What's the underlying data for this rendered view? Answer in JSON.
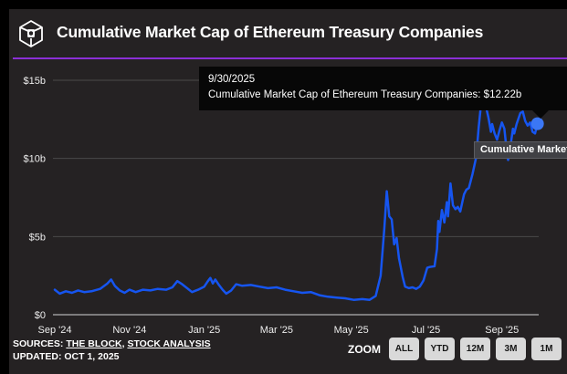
{
  "colors": {
    "page_bg": "#000000",
    "card_bg": "#252223",
    "accent_rule": "#8b2fd6",
    "line": "#1655f0",
    "end_dot": "#3b77f5",
    "gridline": "#4a4a4a",
    "zero_line": "#d4d4d4"
  },
  "header": {
    "title": "Cumulative Market Cap of Ethereum Treasury Companies",
    "logo": "the-block-logo"
  },
  "tooltip": {
    "date": "9/30/2025",
    "text": "Cumulative Market Cap of Ethereum Treasury Companies: $12.22b"
  },
  "series_label": "Cumulative Market",
  "footer": {
    "sources_label": "SOURCES:",
    "source1": "THE BLOCK",
    "separator": ", ",
    "source2": "STOCK ANALYSIS",
    "updated": "UPDATED: OCT 1, 2025",
    "zoom_label": "ZOOM",
    "zoom_buttons": [
      "ALL",
      "YTD",
      "12M",
      "3M",
      "1M"
    ]
  },
  "chart_data": {
    "type": "line",
    "title": "Cumulative Market Cap of Ethereum Treasury Companies",
    "unit": "USD billions",
    "grid": true,
    "legend_position": "end-of-line",
    "x_range": [
      "2024-09-01",
      "2025-10-01"
    ],
    "ylim": [
      0,
      15
    ],
    "y_ticks": [
      {
        "v": 0,
        "label": "$0"
      },
      {
        "v": 5,
        "label": "$5b"
      },
      {
        "v": 10,
        "label": "$10b"
      },
      {
        "v": 15,
        "label": "$15b"
      }
    ],
    "x_ticks": [
      {
        "date": "2024-09-01",
        "label": "Sep '24"
      },
      {
        "date": "2024-11-01",
        "label": "Nov '24"
      },
      {
        "date": "2025-01-01",
        "label": "Jan '25"
      },
      {
        "date": "2025-03-01",
        "label": "Mar '25"
      },
      {
        "date": "2025-05-01",
        "label": "May '25"
      },
      {
        "date": "2025-07-01",
        "label": "Jul '25"
      },
      {
        "date": "2025-09-01",
        "label": "Sep '25"
      }
    ],
    "end_marker": {
      "date": "2025-09-30",
      "value": 12.22
    },
    "series": [
      {
        "name": "Cumulative Market Cap of Ethereum Treasury Companies",
        "points": [
          [
            "2024-09-01",
            1.6
          ],
          [
            "2024-09-05",
            1.35
          ],
          [
            "2024-09-10",
            1.5
          ],
          [
            "2024-09-15",
            1.4
          ],
          [
            "2024-09-20",
            1.55
          ],
          [
            "2024-09-25",
            1.45
          ],
          [
            "2024-10-01",
            1.5
          ],
          [
            "2024-10-08",
            1.65
          ],
          [
            "2024-10-14",
            2.0
          ],
          [
            "2024-10-17",
            2.25
          ],
          [
            "2024-10-20",
            1.85
          ],
          [
            "2024-10-24",
            1.55
          ],
          [
            "2024-10-28",
            1.4
          ],
          [
            "2024-11-01",
            1.6
          ],
          [
            "2024-11-06",
            1.45
          ],
          [
            "2024-11-12",
            1.6
          ],
          [
            "2024-11-18",
            1.55
          ],
          [
            "2024-11-24",
            1.65
          ],
          [
            "2024-12-01",
            1.6
          ],
          [
            "2024-12-06",
            1.75
          ],
          [
            "2024-12-10",
            2.15
          ],
          [
            "2024-12-14",
            1.95
          ],
          [
            "2024-12-18",
            1.7
          ],
          [
            "2024-12-22",
            1.45
          ],
          [
            "2024-12-27",
            1.6
          ],
          [
            "2025-01-01",
            1.8
          ],
          [
            "2025-01-04",
            2.15
          ],
          [
            "2025-01-06",
            2.35
          ],
          [
            "2025-01-08",
            2.0
          ],
          [
            "2025-01-10",
            2.25
          ],
          [
            "2025-01-13",
            1.9
          ],
          [
            "2025-01-16",
            1.6
          ],
          [
            "2025-01-19",
            1.35
          ],
          [
            "2025-01-23",
            1.55
          ],
          [
            "2025-01-27",
            1.95
          ],
          [
            "2025-02-01",
            1.85
          ],
          [
            "2025-02-08",
            1.9
          ],
          [
            "2025-02-15",
            1.8
          ],
          [
            "2025-02-22",
            1.7
          ],
          [
            "2025-03-01",
            1.75
          ],
          [
            "2025-03-08",
            1.6
          ],
          [
            "2025-03-15",
            1.5
          ],
          [
            "2025-03-22",
            1.4
          ],
          [
            "2025-03-29",
            1.45
          ],
          [
            "2025-04-05",
            1.25
          ],
          [
            "2025-04-12",
            1.15
          ],
          [
            "2025-04-19",
            1.1
          ],
          [
            "2025-04-26",
            1.05
          ],
          [
            "2025-05-03",
            0.95
          ],
          [
            "2025-05-10",
            1.0
          ],
          [
            "2025-05-16",
            0.95
          ],
          [
            "2025-05-21",
            1.2
          ],
          [
            "2025-05-25",
            2.5
          ],
          [
            "2025-05-28",
            5.5
          ],
          [
            "2025-05-30",
            7.9
          ],
          [
            "2025-06-01",
            6.3
          ],
          [
            "2025-06-03",
            6.1
          ],
          [
            "2025-06-05",
            4.5
          ],
          [
            "2025-06-07",
            4.9
          ],
          [
            "2025-06-09",
            3.6
          ],
          [
            "2025-06-12",
            2.4
          ],
          [
            "2025-06-14",
            1.8
          ],
          [
            "2025-06-17",
            1.7
          ],
          [
            "2025-06-20",
            1.75
          ],
          [
            "2025-06-23",
            1.65
          ],
          [
            "2025-06-26",
            1.8
          ],
          [
            "2025-06-29",
            2.2
          ],
          [
            "2025-07-02",
            3.0
          ],
          [
            "2025-07-04",
            3.05
          ],
          [
            "2025-07-08",
            3.1
          ],
          [
            "2025-07-10",
            4.2
          ],
          [
            "2025-07-11",
            6.0
          ],
          [
            "2025-07-12",
            5.3
          ],
          [
            "2025-07-14",
            6.7
          ],
          [
            "2025-07-16",
            5.9
          ],
          [
            "2025-07-18",
            7.2
          ],
          [
            "2025-07-19",
            6.3
          ],
          [
            "2025-07-21",
            8.4
          ],
          [
            "2025-07-23",
            7.0
          ],
          [
            "2025-07-25",
            6.75
          ],
          [
            "2025-07-27",
            6.9
          ],
          [
            "2025-07-29",
            6.6
          ],
          [
            "2025-08-01",
            7.7
          ],
          [
            "2025-08-03",
            8.0
          ],
          [
            "2025-08-05",
            8.1
          ],
          [
            "2025-08-08",
            9.0
          ],
          [
            "2025-08-11",
            10.1
          ],
          [
            "2025-08-13",
            12.0
          ],
          [
            "2025-08-15",
            13.5
          ],
          [
            "2025-08-17",
            14.0
          ],
          [
            "2025-08-19",
            13.3
          ],
          [
            "2025-08-21",
            12.6
          ],
          [
            "2025-08-23",
            11.7
          ],
          [
            "2025-08-24",
            12.2
          ],
          [
            "2025-08-26",
            11.6
          ],
          [
            "2025-08-28",
            11.2
          ],
          [
            "2025-08-30",
            11.8
          ],
          [
            "2025-09-01",
            12.3
          ],
          [
            "2025-09-03",
            11.9
          ],
          [
            "2025-09-05",
            10.4
          ],
          [
            "2025-09-06",
            9.9
          ],
          [
            "2025-09-08",
            10.8
          ],
          [
            "2025-09-10",
            11.9
          ],
          [
            "2025-09-11",
            11.6
          ],
          [
            "2025-09-13",
            12.2
          ],
          [
            "2025-09-16",
            12.9
          ],
          [
            "2025-09-18",
            13.0
          ],
          [
            "2025-09-20",
            12.4
          ],
          [
            "2025-09-22",
            12.1
          ],
          [
            "2025-09-24",
            12.3
          ],
          [
            "2025-09-26",
            11.7
          ],
          [
            "2025-09-28",
            11.6
          ],
          [
            "2025-09-30",
            12.22
          ]
        ]
      }
    ]
  }
}
